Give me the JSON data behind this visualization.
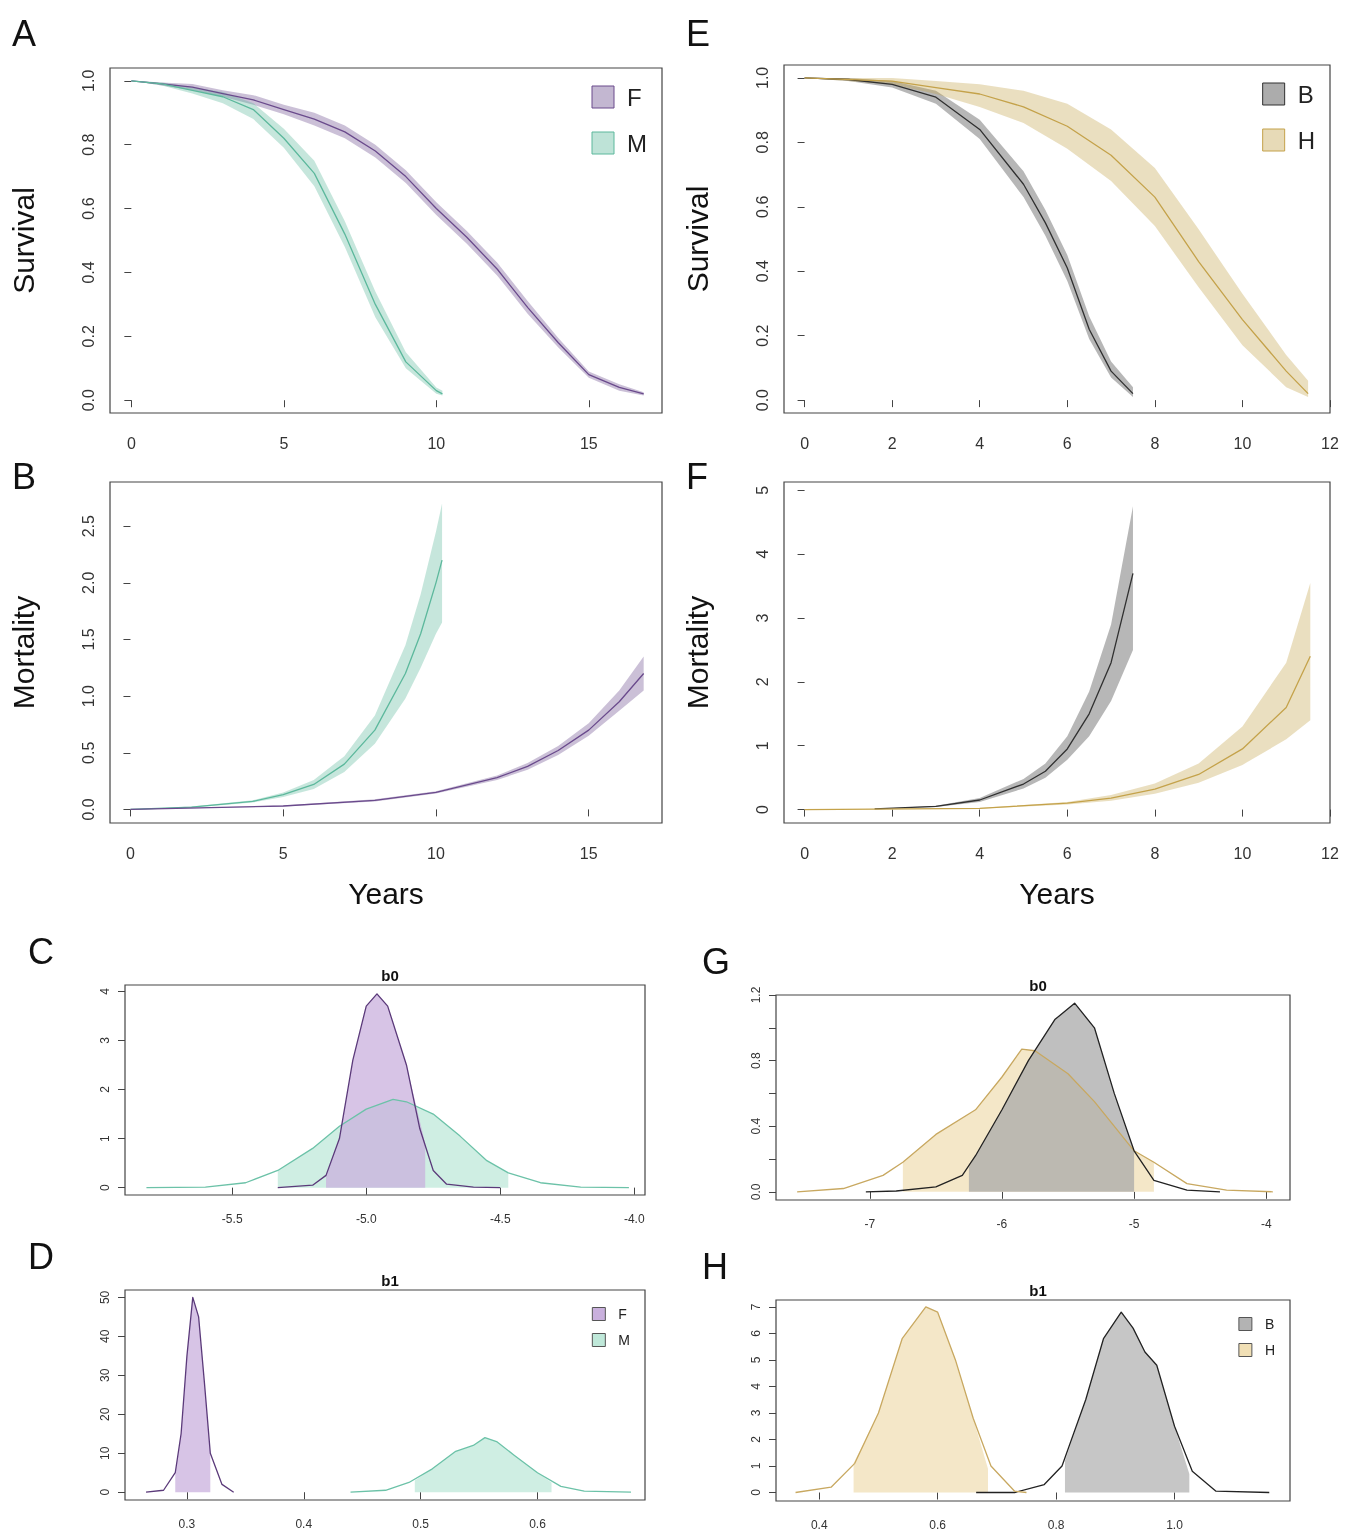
{
  "chart_data": [
    {
      "type": "line",
      "annotations": [
        "A"
      ],
      "ylabel": "Survival",
      "xlim": [
        -0.7,
        17.4
      ],
      "ylim": [
        -0.04,
        1.04
      ],
      "xticks": [
        0,
        5,
        10,
        15
      ],
      "yticks": [
        {
          "value": 0,
          "label": "0.0"
        },
        {
          "value": 0.2,
          "label": "0.2"
        },
        {
          "value": 0.4,
          "label": "0.4"
        },
        {
          "value": 0.6,
          "label": "0.6"
        },
        {
          "value": 0.8,
          "label": "0.8"
        },
        {
          "value": 1,
          "label": "1.0"
        }
      ],
      "legend": "top right",
      "series": [
        {
          "name": "F",
          "color": "#6a4a8c",
          "x": [
            0,
            1,
            2,
            3,
            4,
            5,
            6,
            7,
            8,
            9,
            10,
            11,
            12,
            13,
            14,
            15,
            16,
            16.8
          ],
          "values": [
            1,
            0.99,
            0.98,
            0.96,
            0.94,
            0.91,
            0.88,
            0.84,
            0.78,
            0.7,
            0.6,
            0.51,
            0.41,
            0.29,
            0.18,
            0.08,
            0.04,
            0.02
          ],
          "lower": [
            1,
            0.985,
            0.97,
            0.95,
            0.925,
            0.895,
            0.86,
            0.82,
            0.76,
            0.68,
            0.58,
            0.49,
            0.39,
            0.27,
            0.165,
            0.07,
            0.03,
            0.015
          ],
          "upper": [
            1,
            0.995,
            0.99,
            0.97,
            0.955,
            0.925,
            0.9,
            0.86,
            0.8,
            0.72,
            0.62,
            0.53,
            0.43,
            0.31,
            0.195,
            0.09,
            0.05,
            0.025
          ]
        },
        {
          "name": "M",
          "color": "#5cb89c",
          "x": [
            0,
            1,
            2,
            3,
            4,
            5,
            6,
            7,
            8,
            9,
            10,
            10.2
          ],
          "values": [
            1,
            0.99,
            0.97,
            0.95,
            0.91,
            0.82,
            0.71,
            0.52,
            0.3,
            0.12,
            0.03,
            0.02
          ],
          "lower": [
            1,
            0.985,
            0.96,
            0.93,
            0.88,
            0.79,
            0.67,
            0.48,
            0.26,
            0.1,
            0.02,
            0.015
          ],
          "upper": [
            1,
            0.995,
            0.98,
            0.965,
            0.93,
            0.85,
            0.75,
            0.56,
            0.34,
            0.15,
            0.04,
            0.03
          ]
        }
      ]
    },
    {
      "type": "line",
      "annotations": [
        "B"
      ],
      "ylabel": "Mortality",
      "xlabel": "Years",
      "xlim": [
        -0.67,
        17.4
      ],
      "ylim": [
        -0.12,
        2.89
      ],
      "xticks": [
        0,
        5,
        10,
        15
      ],
      "yticks": [
        {
          "value": 0,
          "label": "0.0"
        },
        {
          "value": 0.5,
          "label": "0.5"
        },
        {
          "value": 1,
          "label": "1.0"
        },
        {
          "value": 1.5,
          "label": "1.5"
        },
        {
          "value": 2,
          "label": "2.0"
        },
        {
          "value": 2.5,
          "label": "2.5"
        }
      ],
      "series": [
        {
          "color": "#5cb89c",
          "x": [
            0,
            2,
            4,
            5,
            6,
            7,
            8,
            9,
            9.5,
            10,
            10.2
          ],
          "values": [
            0,
            0.02,
            0.07,
            0.13,
            0.22,
            0.4,
            0.7,
            1.2,
            1.55,
            2,
            2.2
          ],
          "lower": [
            0,
            0.015,
            0.06,
            0.11,
            0.18,
            0.33,
            0.58,
            0.98,
            1.25,
            1.55,
            1.65
          ],
          "upper": [
            0,
            0.025,
            0.08,
            0.15,
            0.26,
            0.47,
            0.83,
            1.45,
            1.9,
            2.45,
            2.7
          ]
        },
        {
          "color": "#6a4a8c",
          "x": [
            0,
            5,
            8,
            10,
            12,
            13,
            14,
            15,
            16,
            16.8
          ],
          "values": [
            0,
            0.03,
            0.08,
            0.15,
            0.28,
            0.38,
            0.52,
            0.7,
            0.95,
            1.2
          ],
          "lower": [
            0,
            0.025,
            0.07,
            0.14,
            0.26,
            0.35,
            0.48,
            0.65,
            0.87,
            1.05
          ],
          "upper": [
            0,
            0.035,
            0.09,
            0.16,
            0.3,
            0.41,
            0.56,
            0.76,
            1.05,
            1.35
          ]
        }
      ]
    },
    {
      "type": "line",
      "annotations": [
        "C"
      ],
      "title": "b0",
      "xlim": [
        -5.9,
        -3.96
      ],
      "ylim": [
        -0.15,
        4.13
      ],
      "xticks": [
        {
          "value": -5.5,
          "label": "-5.5"
        },
        {
          "value": -5,
          "label": "-5.0"
        },
        {
          "value": -4.5,
          "label": "-4.5"
        },
        {
          "value": -4,
          "label": "-4.0"
        }
      ],
      "yticks": [
        0,
        1,
        2,
        3,
        4
      ],
      "series": [
        {
          "type": "area",
          "color": "#bfe8d9",
          "x": [
            -5.33,
            -5.2,
            -5.1,
            -5,
            -4.9,
            -4.85,
            -4.75,
            -4.65,
            -4.55,
            -4.47
          ],
          "values": [
            0.35,
            0.8,
            1.25,
            1.6,
            1.8,
            1.75,
            1.5,
            1.05,
            0.55,
            0.3
          ]
        },
        {
          "type": "area",
          "color": "#c9b0dd",
          "x": [
            -5.15,
            -5.1,
            -5.05,
            -5,
            -4.96,
            -4.92,
            -4.85,
            -4.78
          ],
          "values": [
            0.25,
            1,
            2.6,
            3.7,
            3.95,
            3.7,
            2.5,
            0.9
          ]
        },
        {
          "color": "#6cc2a8",
          "x": [
            -5.82,
            -5.6,
            -5.45,
            -5.33,
            -5.2,
            -5.1,
            -5,
            -4.9,
            -4.85,
            -4.75,
            -4.65,
            -4.55,
            -4.47,
            -4.35,
            -4.2,
            -4.02
          ],
          "values": [
            0,
            0.01,
            0.1,
            0.35,
            0.8,
            1.25,
            1.6,
            1.8,
            1.75,
            1.5,
            1.05,
            0.55,
            0.3,
            0.1,
            0.01,
            0
          ]
        },
        {
          "color": "#5b3a7a",
          "x": [
            -5.33,
            -5.2,
            -5.15,
            -5.1,
            -5.05,
            -5,
            -4.96,
            -4.92,
            -4.85,
            -4.8,
            -4.75,
            -4.7,
            -4.6,
            -4.5
          ],
          "values": [
            0,
            0.05,
            0.25,
            1,
            2.6,
            3.7,
            3.95,
            3.7,
            2.5,
            1.2,
            0.35,
            0.07,
            0.01,
            0
          ]
        }
      ]
    },
    {
      "type": "line",
      "annotations": [
        "D"
      ],
      "title": "b1",
      "xlim": [
        0.247,
        0.692
      ],
      "ylim": [
        -2,
        51.9
      ],
      "xticks": [
        0.3,
        0.4,
        0.5,
        0.6
      ],
      "yticks": [
        0,
        10,
        20,
        30,
        40,
        50
      ],
      "legend": "top right",
      "series": [
        {
          "type": "area",
          "name": "F",
          "color": "#c9b0dd",
          "x": [
            0.29,
            0.295,
            0.3,
            0.305,
            0.31,
            0.315,
            0.32
          ],
          "values": [
            5,
            15,
            35,
            50,
            45,
            28,
            10
          ]
        },
        {
          "type": "area",
          "name": "M",
          "color": "#bfe8d9",
          "x": [
            0.495,
            0.51,
            0.53,
            0.545,
            0.555,
            0.565,
            0.58,
            0.6,
            0.612
          ],
          "values": [
            3,
            6,
            10.5,
            12,
            14,
            13,
            9.5,
            5,
            2.5
          ]
        },
        {
          "color": "#5b3a7a",
          "x": [
            0.265,
            0.28,
            0.29,
            0.295,
            0.3,
            0.305,
            0.31,
            0.315,
            0.32,
            0.33,
            0.34
          ],
          "values": [
            0,
            0.5,
            5,
            15,
            35,
            50,
            45,
            28,
            10,
            2,
            0
          ]
        },
        {
          "color": "#6cc2a8",
          "x": [
            0.44,
            0.47,
            0.49,
            0.51,
            0.53,
            0.545,
            0.555,
            0.565,
            0.58,
            0.6,
            0.62,
            0.64,
            0.68
          ],
          "values": [
            0,
            0.5,
            2.5,
            6,
            10.5,
            12,
            14,
            13,
            9.5,
            5,
            1.5,
            0.3,
            0
          ]
        }
      ]
    },
    {
      "type": "line",
      "annotations": [
        "E"
      ],
      "ylabel": "Survival",
      "xlim": [
        -0.47,
        12
      ],
      "ylim": [
        -0.04,
        1.04
      ],
      "xticks": [
        0,
        2,
        4,
        6,
        8,
        10,
        12
      ],
      "yticks": [
        {
          "value": 0,
          "label": "0.0"
        },
        {
          "value": 0.2,
          "label": "0.2"
        },
        {
          "value": 0.4,
          "label": "0.4"
        },
        {
          "value": 0.6,
          "label": "0.6"
        },
        {
          "value": 0.8,
          "label": "0.8"
        },
        {
          "value": 1,
          "label": "1.0"
        }
      ],
      "legend": "top right",
      "series": [
        {
          "name": "B",
          "color": "#303030",
          "x": [
            0,
            1,
            2,
            3,
            4,
            5,
            5.5,
            6,
            6.5,
            7,
            7.5
          ],
          "values": [
            1,
            0.995,
            0.98,
            0.94,
            0.84,
            0.67,
            0.55,
            0.41,
            0.22,
            0.09,
            0.02
          ],
          "lower": [
            1,
            0.99,
            0.97,
            0.92,
            0.81,
            0.63,
            0.51,
            0.37,
            0.19,
            0.07,
            0.01
          ],
          "upper": [
            1,
            1,
            0.99,
            0.96,
            0.87,
            0.71,
            0.59,
            0.45,
            0.26,
            0.12,
            0.04
          ]
        },
        {
          "name": "H",
          "color": "#c4a24a",
          "x": [
            0,
            2,
            3,
            4,
            5,
            6,
            7,
            8,
            9,
            10,
            11,
            11.5
          ],
          "values": [
            1,
            0.99,
            0.97,
            0.95,
            0.91,
            0.85,
            0.76,
            0.63,
            0.43,
            0.25,
            0.09,
            0.02
          ],
          "lower": [
            1,
            0.98,
            0.95,
            0.91,
            0.86,
            0.78,
            0.68,
            0.54,
            0.35,
            0.17,
            0.04,
            0.01
          ],
          "upper": [
            1,
            1,
            0.99,
            0.98,
            0.96,
            0.92,
            0.84,
            0.72,
            0.53,
            0.33,
            0.14,
            0.06
          ]
        }
      ]
    },
    {
      "type": "line",
      "annotations": [
        "F"
      ],
      "ylabel": "Mortality",
      "xlabel": "Years",
      "xlim": [
        -0.47,
        12
      ],
      "ylim": [
        -0.21,
        5.13
      ],
      "xticks": [
        0,
        2,
        4,
        6,
        8,
        10,
        12
      ],
      "yticks": [
        0,
        1,
        2,
        3,
        4,
        5
      ],
      "series": [
        {
          "color": "#303030",
          "x": [
            1.6,
            3,
            4,
            5,
            5.5,
            6,
            6.5,
            7,
            7.5
          ],
          "values": [
            0.01,
            0.05,
            0.15,
            0.4,
            0.6,
            0.95,
            1.5,
            2.3,
            3.7
          ],
          "lower": [
            0.01,
            0.04,
            0.12,
            0.33,
            0.5,
            0.78,
            1.15,
            1.7,
            2.5
          ],
          "upper": [
            0.01,
            0.06,
            0.18,
            0.48,
            0.72,
            1.15,
            1.85,
            2.9,
            4.75
          ]
        },
        {
          "color": "#c4a24a",
          "x": [
            0,
            4,
            6,
            7,
            8,
            9,
            10,
            11,
            11.55
          ],
          "values": [
            0,
            0.02,
            0.1,
            0.18,
            0.32,
            0.55,
            0.95,
            1.6,
            2.4
          ],
          "lower": [
            0,
            0.015,
            0.08,
            0.14,
            0.25,
            0.42,
            0.7,
            1.1,
            1.4
          ],
          "upper": [
            0,
            0.025,
            0.12,
            0.23,
            0.41,
            0.72,
            1.3,
            2.3,
            3.55
          ]
        }
      ]
    },
    {
      "type": "line",
      "annotations": [
        "G"
      ],
      "title": "b0",
      "xlim": [
        -7.71,
        -3.82
      ],
      "ylim": [
        -0.05,
        1.2
      ],
      "xticks": [
        -7,
        -6,
        -5,
        -4
      ],
      "yticks": [
        {
          "value": 0,
          "label": "0.0"
        },
        {
          "value": 0.2,
          "label": null
        },
        {
          "value": 0.4,
          "label": "0.4"
        },
        {
          "value": 0.6,
          "label": null
        },
        {
          "value": 0.8,
          "label": "0.8"
        },
        {
          "value": 1,
          "label": null
        },
        {
          "value": 1.2,
          "label": "1.2"
        }
      ],
      "series": [
        {
          "type": "area",
          "color": "#f0dfb5",
          "x": [
            -6.75,
            -6.5,
            -6.2,
            -6,
            -5.85,
            -5.75,
            -5.5,
            -5.3,
            -5,
            -4.85
          ],
          "values": [
            0.18,
            0.35,
            0.5,
            0.7,
            0.87,
            0.86,
            0.72,
            0.55,
            0.25,
            0.18
          ]
        },
        {
          "type": "area",
          "color": "#a9a9a9",
          "x": [
            -6.25,
            -6.2,
            -6,
            -5.8,
            -5.6,
            -5.45,
            -5.3,
            -5.15,
            -5
          ],
          "values": [
            0.15,
            0.22,
            0.5,
            0.8,
            1.05,
            1.15,
            1,
            0.6,
            0.25
          ]
        },
        {
          "color": "#c8a860",
          "x": [
            -7.55,
            -7.2,
            -6.9,
            -6.75,
            -6.5,
            -6.2,
            -6,
            -5.85,
            -5.75,
            -5.5,
            -5.3,
            -5,
            -4.85,
            -4.6,
            -4.3,
            -3.95
          ],
          "values": [
            0,
            0.02,
            0.1,
            0.18,
            0.35,
            0.5,
            0.7,
            0.87,
            0.86,
            0.72,
            0.55,
            0.25,
            0.18,
            0.05,
            0.01,
            0
          ]
        },
        {
          "color": "#222222",
          "x": [
            -7.03,
            -6.8,
            -6.5,
            -6.3,
            -6.2,
            -6,
            -5.8,
            -5.6,
            -5.45,
            -5.3,
            -5.15,
            -5,
            -4.85,
            -4.6,
            -4.35
          ],
          "values": [
            0,
            0.005,
            0.03,
            0.1,
            0.22,
            0.5,
            0.8,
            1.05,
            1.15,
            1,
            0.6,
            0.25,
            0.07,
            0.01,
            0
          ]
        }
      ]
    },
    {
      "type": "line",
      "annotations": [
        "H"
      ],
      "title": "b1",
      "xlim": [
        0.327,
        1.195
      ],
      "ylim": [
        -0.32,
        7.26
      ],
      "xticks": [
        0.4,
        0.6,
        0.8,
        {
          "value": 1,
          "label": "1.0"
        }
      ],
      "yticks": [
        0,
        1,
        2,
        3,
        4,
        5,
        6,
        7
      ],
      "legend": "top right",
      "series": [
        {
          "type": "area",
          "name": "B",
          "color": "#b3b3b3",
          "x": [
            0.815,
            0.85,
            0.88,
            0.91,
            0.93,
            0.95,
            0.97,
            1,
            1.025
          ],
          "values": [
            1.2,
            3.5,
            5.8,
            6.8,
            6.2,
            5.3,
            4.8,
            2.5,
            0.7
          ]
        },
        {
          "type": "area",
          "name": "H",
          "color": "#f0dfb5",
          "x": [
            0.458,
            0.5,
            0.54,
            0.58,
            0.6,
            0.63,
            0.66,
            0.685
          ],
          "values": [
            1.1,
            3,
            5.8,
            7,
            6.8,
            5,
            2.8,
            0.9
          ]
        },
        {
          "color": "#222222",
          "x": [
            0.665,
            0.73,
            0.78,
            0.81,
            0.85,
            0.88,
            0.91,
            0.93,
            0.95,
            0.97,
            1,
            1.03,
            1.07,
            1.16
          ],
          "values": [
            0,
            0,
            0.3,
            1,
            3.5,
            5.8,
            6.8,
            6.2,
            5.3,
            4.8,
            2.5,
            0.8,
            0.05,
            0
          ]
        },
        {
          "color": "#c8a860",
          "x": [
            0.36,
            0.42,
            0.46,
            0.5,
            0.54,
            0.58,
            0.6,
            0.63,
            0.66,
            0.69,
            0.73,
            0.75
          ],
          "values": [
            0,
            0.2,
            1.1,
            3,
            5.8,
            7,
            6.8,
            5,
            2.8,
            1,
            0.05,
            0
          ]
        }
      ]
    }
  ]
}
